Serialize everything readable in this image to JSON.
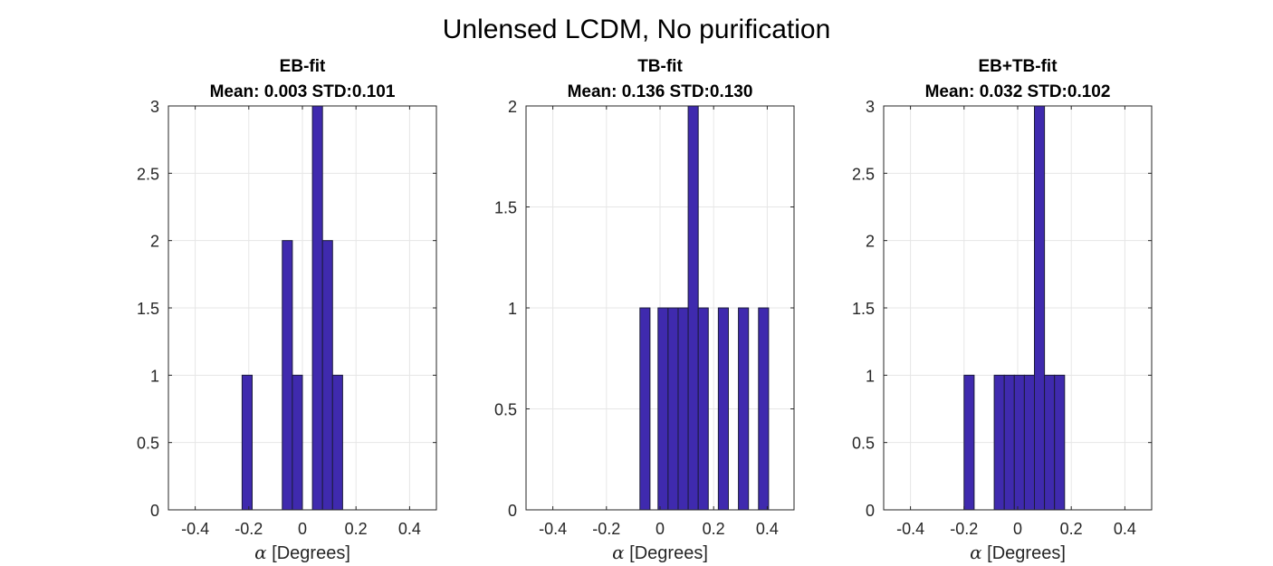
{
  "figure_title": "Unlensed LCDM, No purification",
  "bar_color": "#3F2AAE",
  "edge_color": "#1B1B3A",
  "grid_color": "#E6E6E6",
  "chart_data": [
    {
      "type": "bar",
      "title": "EB-fit",
      "subtitle": "Mean: 0.003 STD:0.101",
      "xlabel_symbol": "α",
      "xlabel": " [Degrees]",
      "ylabel": "",
      "xlim": [
        -0.5,
        0.5
      ],
      "ylim": [
        0,
        3
      ],
      "xticks": [
        -0.4,
        -0.2,
        0,
        0.2,
        0.4
      ],
      "xtick_labels": [
        "-0.4",
        "-0.2",
        "0",
        "0.2",
        "0.4"
      ],
      "yticks": [
        0,
        0.5,
        1,
        1.5,
        2,
        2.5,
        3
      ],
      "ytick_labels": [
        "0",
        "0.5",
        "1",
        "1.5",
        "2",
        "2.5",
        "3"
      ],
      "grid": true,
      "bins": [
        {
          "x0": -0.225,
          "x1": -0.1875,
          "count": 1
        },
        {
          "x0": -0.075,
          "x1": -0.0375,
          "count": 2
        },
        {
          "x0": -0.0375,
          "x1": 0.0,
          "count": 1
        },
        {
          "x0": 0.0375,
          "x1": 0.075,
          "count": 3
        },
        {
          "x0": 0.075,
          "x1": 0.1125,
          "count": 2
        },
        {
          "x0": 0.1125,
          "x1": 0.15,
          "count": 1
        }
      ]
    },
    {
      "type": "bar",
      "title": "TB-fit",
      "subtitle": "Mean: 0.136 STD:0.130",
      "xlabel_symbol": "α",
      "xlabel": " [Degrees]",
      "ylabel": "",
      "xlim": [
        -0.5,
        0.5
      ],
      "ylim": [
        0,
        2
      ],
      "xticks": [
        -0.4,
        -0.2,
        0,
        0.2,
        0.4
      ],
      "xtick_labels": [
        "-0.4",
        "-0.2",
        "0",
        "0.2",
        "0.4"
      ],
      "yticks": [
        0,
        0.5,
        1,
        1.5,
        2
      ],
      "ytick_labels": [
        "0",
        "0.5",
        "1",
        "1.5",
        "2"
      ],
      "grid": true,
      "bins": [
        {
          "x0": -0.075,
          "x1": -0.0375,
          "count": 1
        },
        {
          "x0": -0.0075,
          "x1": 0.03,
          "count": 1
        },
        {
          "x0": 0.03,
          "x1": 0.0675,
          "count": 1
        },
        {
          "x0": 0.0675,
          "x1": 0.105,
          "count": 1
        },
        {
          "x0": 0.105,
          "x1": 0.1425,
          "count": 2
        },
        {
          "x0": 0.1425,
          "x1": 0.18,
          "count": 1
        },
        {
          "x0": 0.2175,
          "x1": 0.255,
          "count": 1
        },
        {
          "x0": 0.2925,
          "x1": 0.33,
          "count": 1
        },
        {
          "x0": 0.3675,
          "x1": 0.405,
          "count": 1
        }
      ]
    },
    {
      "type": "bar",
      "title": "EB+TB-fit",
      "subtitle": "Mean: 0.032 STD:0.102",
      "xlabel_symbol": "α",
      "xlabel": " [Degrees]",
      "ylabel": "",
      "xlim": [
        -0.5,
        0.5
      ],
      "ylim": [
        0,
        3
      ],
      "xticks": [
        -0.4,
        -0.2,
        0,
        0.2,
        0.4
      ],
      "xtick_labels": [
        "-0.4",
        "-0.2",
        "0",
        "0.2",
        "0.4"
      ],
      "yticks": [
        0,
        0.5,
        1,
        1.5,
        2,
        2.5,
        3
      ],
      "ytick_labels": [
        "0",
        "0.5",
        "1",
        "1.5",
        "2",
        "2.5",
        "3"
      ],
      "grid": true,
      "bins": [
        {
          "x0": -0.2,
          "x1": -0.1625,
          "count": 1
        },
        {
          "x0": -0.0875,
          "x1": -0.05,
          "count": 1
        },
        {
          "x0": -0.05,
          "x1": -0.0125,
          "count": 1
        },
        {
          "x0": -0.0125,
          "x1": 0.025,
          "count": 1
        },
        {
          "x0": 0.025,
          "x1": 0.0625,
          "count": 1
        },
        {
          "x0": 0.0625,
          "x1": 0.1,
          "count": 3
        },
        {
          "x0": 0.1,
          "x1": 0.1375,
          "count": 1
        },
        {
          "x0": 0.1375,
          "x1": 0.175,
          "count": 1
        }
      ]
    }
  ]
}
